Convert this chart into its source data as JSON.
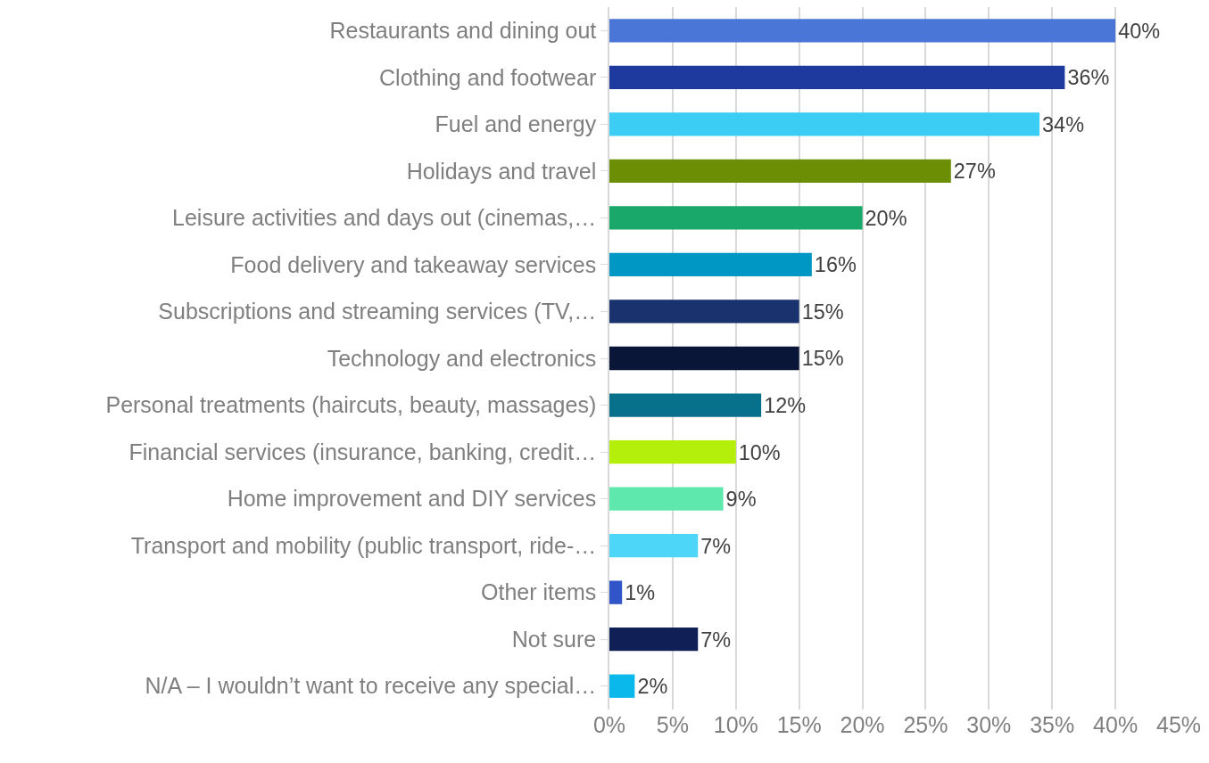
{
  "chart_data": {
    "type": "bar",
    "orientation": "horizontal",
    "categories": [
      "Restaurants and dining out",
      "Clothing and footwear",
      "Fuel and energy",
      "Holidays and travel",
      "Leisure activities and days out (cinemas,…",
      "Food delivery and takeaway services",
      "Subscriptions and streaming services (TV,…",
      "Technology and electronics",
      "Personal treatments (haircuts, beauty, massages)",
      "Financial services (insurance, banking, credit…",
      "Home improvement and DIY services",
      "Transport and mobility (public transport, ride-…",
      "Other items",
      "Not sure",
      "N/A – I wouldn’t want to receive any special…"
    ],
    "values": [
      40,
      36,
      34,
      27,
      20,
      16,
      15,
      15,
      12,
      10,
      9,
      7,
      1,
      7,
      2
    ],
    "value_labels": [
      "40%",
      "36%",
      "34%",
      "27%",
      "20%",
      "16%",
      "15%",
      "15%",
      "12%",
      "10%",
      "9%",
      "7%",
      "1%",
      "7%",
      "2%"
    ],
    "colors": [
      "#4a76d8",
      "#1f3a9e",
      "#3ccdf5",
      "#6b8e05",
      "#1aa86a",
      "#0097c4",
      "#1a336e",
      "#0a1638",
      "#07708a",
      "#b3ef0a",
      "#5ee8ae",
      "#4dd6f8",
      "#2f55c8",
      "#101f55",
      "#0bb8ec"
    ],
    "xlim": [
      0,
      45
    ],
    "xticks": [
      {
        "value": 0,
        "label": "0%"
      },
      {
        "value": 5,
        "label": "5%"
      },
      {
        "value": 10,
        "label": "10%"
      },
      {
        "value": 15,
        "label": "15%"
      },
      {
        "value": 20,
        "label": "20%"
      },
      {
        "value": 25,
        "label": "25%"
      },
      {
        "value": 30,
        "label": "30%"
      },
      {
        "value": 35,
        "label": "35%"
      },
      {
        "value": 40,
        "label": "40%"
      },
      {
        "value": 45,
        "label": "45%"
      }
    ],
    "grid": "x"
  }
}
